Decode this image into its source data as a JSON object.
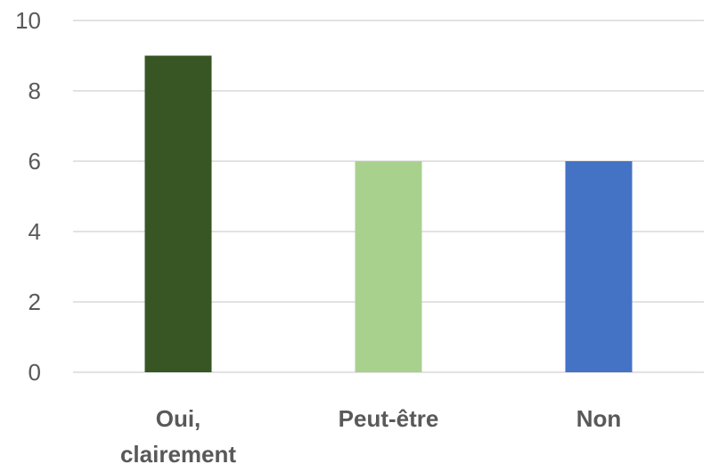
{
  "chart_data": {
    "type": "bar",
    "categories": [
      "Oui, clairement",
      "Peut-être",
      "Non"
    ],
    "values": [
      9,
      6,
      6
    ],
    "colors": [
      "#375623",
      "#a9d18e",
      "#4472c4"
    ],
    "ylim": [
      0,
      10
    ],
    "yticks": [
      0,
      2,
      4,
      6,
      8,
      10
    ],
    "grid": true
  }
}
